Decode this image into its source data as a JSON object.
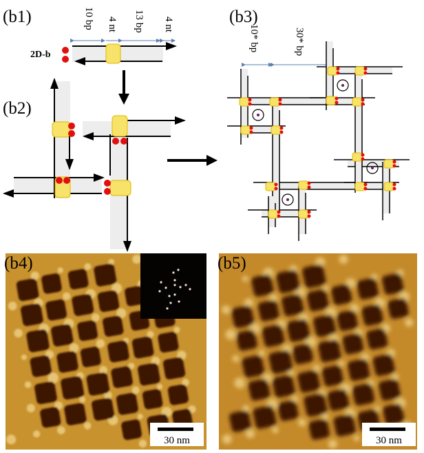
{
  "panels": {
    "b1": {
      "label": "(b1)",
      "name": "2D-b",
      "dims": [
        "10 bp",
        "4 nt",
        "13 bp",
        "4 nt"
      ]
    },
    "b2": {
      "label": "(b2)"
    },
    "b3": {
      "label": "(b3)",
      "dims": [
        "10* bp",
        "30* bp"
      ],
      "dim2_color": "#c0282a"
    },
    "b4": {
      "label": "(b4)",
      "scalebar": "30 nm",
      "inset": "FFT"
    },
    "b5": {
      "label": "(b5)",
      "scalebar": "30 nm"
    }
  },
  "colors": {
    "crossover": "#f7e26a",
    "sticky_end": "#e01010",
    "afm_bg": "#c8922e",
    "afm_hole": "#3e1606"
  }
}
